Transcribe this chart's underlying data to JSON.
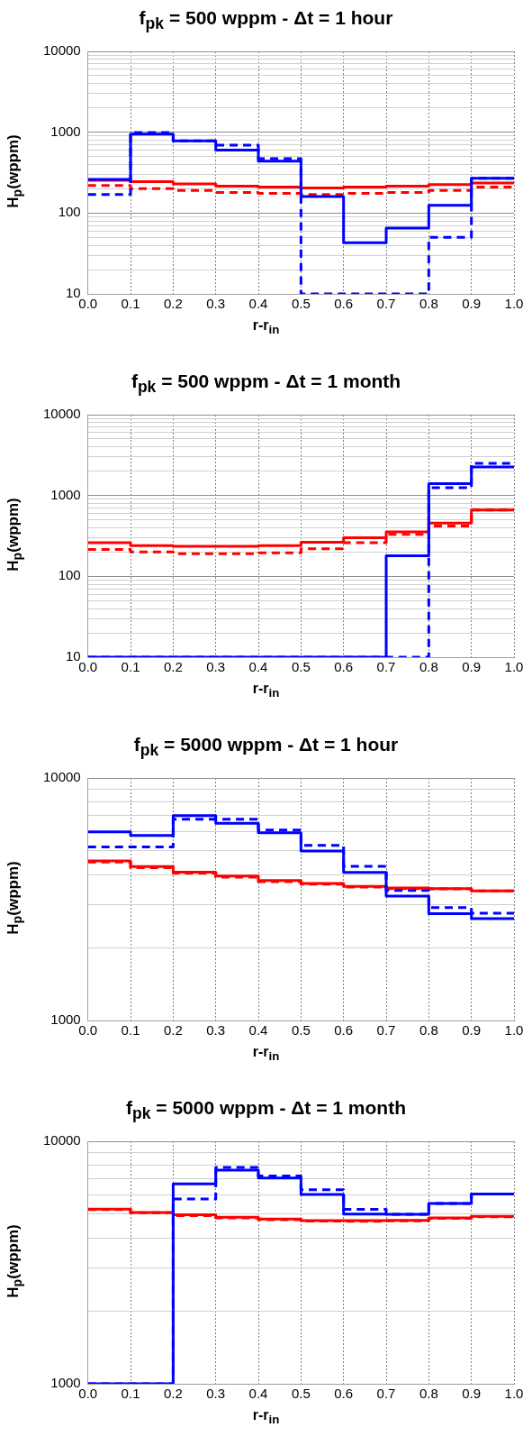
{
  "chart_data": [
    {
      "type": "step",
      "title": "f$_{pk}$ = 500 wppm - Δt = 1 hour",
      "xlabel": "r-r$_{in}$",
      "ylabel": "H$_{p}$(wppm)",
      "log": true,
      "grid": true,
      "marker": "none",
      "x": [
        0,
        0.1,
        0.2,
        0.3,
        0.4,
        0.5,
        0.6,
        0.7,
        0.8,
        0.9,
        1.0
      ],
      "xlim": [
        0,
        1
      ],
      "xticks": [
        {
          "value": 0,
          "label": "0.0"
        },
        {
          "value": 0.1,
          "label": "0.1"
        },
        {
          "value": 0.2,
          "label": "0.2"
        },
        {
          "value": 0.3,
          "label": "0.3"
        },
        {
          "value": 0.4,
          "label": "0.4"
        },
        {
          "value": 0.5,
          "label": "0.5"
        },
        {
          "value": 0.6,
          "label": "0.6"
        },
        {
          "value": 0.7,
          "label": "0.7"
        },
        {
          "value": 0.8,
          "label": "0.8"
        },
        {
          "value": 0.9,
          "label": "0.9"
        },
        {
          "value": 1,
          "label": "1.0"
        }
      ],
      "ylim": [
        10,
        10000
      ],
      "yticks": [
        10,
        {
          "value": 20,
          "label": null
        },
        {
          "value": 30,
          "label": null
        },
        {
          "value": 40,
          "label": null
        },
        {
          "value": 50,
          "label": null
        },
        {
          "value": 60,
          "label": null
        },
        {
          "value": 70,
          "label": null
        },
        {
          "value": 80,
          "label": null
        },
        {
          "value": 90,
          "label": null
        },
        100,
        {
          "value": 200,
          "label": null
        },
        {
          "value": 300,
          "label": null
        },
        {
          "value": 400,
          "label": null
        },
        {
          "value": 500,
          "label": null
        },
        {
          "value": 600,
          "label": null
        },
        {
          "value": 700,
          "label": null
        },
        {
          "value": 800,
          "label": null
        },
        {
          "value": 900,
          "label": null
        },
        1000,
        {
          "value": 2000,
          "label": null
        },
        {
          "value": 3000,
          "label": null
        },
        {
          "value": 4000,
          "label": null
        },
        {
          "value": 5000,
          "label": null
        },
        {
          "value": 6000,
          "label": null
        },
        {
          "value": 7000,
          "label": null
        },
        {
          "value": 8000,
          "label": null
        },
        {
          "value": 9000,
          "label": null
        },
        10000
      ],
      "series": [
        {
          "color": "#ff0000",
          "line_style": "solid",
          "values": [
            255,
            245,
            230,
            215,
            210,
            205,
            210,
            215,
            225,
            235,
            235
          ]
        },
        {
          "color": "#ff0000",
          "line_style": "dashed",
          "values": [
            220,
            200,
            190,
            180,
            175,
            170,
            175,
            180,
            190,
            210,
            210
          ]
        },
        {
          "color": "#0000ff",
          "line_style": "dashed",
          "values": [
            170,
            990,
            780,
            690,
            470,
            10,
            10,
            10,
            50,
            270,
            270
          ]
        },
        {
          "color": "#0000ff",
          "line_style": "solid",
          "values": [
            260,
            950,
            780,
            600,
            440,
            160,
            43,
            65,
            125,
            270,
            270
          ]
        }
      ]
    },
    {
      "type": "step",
      "title": "f$_{pk}$ = 500 wppm - Δt = 1 month",
      "xlabel": "r-r$_{in}$",
      "ylabel": "H$_{p}$(wppm)",
      "log": true,
      "grid": true,
      "marker": "none",
      "x": [
        0,
        0.1,
        0.2,
        0.3,
        0.4,
        0.5,
        0.6,
        0.7,
        0.8,
        0.9,
        1.0
      ],
      "xlim": [
        0,
        1
      ],
      "xticks": [
        {
          "value": 0,
          "label": "0.0"
        },
        {
          "value": 0.1,
          "label": "0.1"
        },
        {
          "value": 0.2,
          "label": "0.2"
        },
        {
          "value": 0.3,
          "label": "0.3"
        },
        {
          "value": 0.4,
          "label": "0.4"
        },
        {
          "value": 0.5,
          "label": "0.5"
        },
        {
          "value": 0.6,
          "label": "0.6"
        },
        {
          "value": 0.7,
          "label": "0.7"
        },
        {
          "value": 0.8,
          "label": "0.8"
        },
        {
          "value": 0.9,
          "label": "0.9"
        },
        {
          "value": 1,
          "label": "1.0"
        }
      ],
      "ylim": [
        10,
        10000
      ],
      "yticks": [
        10,
        {
          "value": 20,
          "label": null
        },
        {
          "value": 30,
          "label": null
        },
        {
          "value": 40,
          "label": null
        },
        {
          "value": 50,
          "label": null
        },
        {
          "value": 60,
          "label": null
        },
        {
          "value": 70,
          "label": null
        },
        {
          "value": 80,
          "label": null
        },
        {
          "value": 90,
          "label": null
        },
        100,
        {
          "value": 200,
          "label": null
        },
        {
          "value": 300,
          "label": null
        },
        {
          "value": 400,
          "label": null
        },
        {
          "value": 500,
          "label": null
        },
        {
          "value": 600,
          "label": null
        },
        {
          "value": 700,
          "label": null
        },
        {
          "value": 800,
          "label": null
        },
        {
          "value": 900,
          "label": null
        },
        1000,
        {
          "value": 2000,
          "label": null
        },
        {
          "value": 3000,
          "label": null
        },
        {
          "value": 4000,
          "label": null
        },
        {
          "value": 5000,
          "label": null
        },
        {
          "value": 6000,
          "label": null
        },
        {
          "value": 7000,
          "label": null
        },
        {
          "value": 8000,
          "label": null
        },
        {
          "value": 9000,
          "label": null
        },
        10000
      ],
      "series": [
        {
          "color": "#ff0000",
          "line_style": "solid",
          "values": [
            260,
            240,
            235,
            235,
            240,
            265,
            300,
            355,
            455,
            660,
            660
          ]
        },
        {
          "color": "#ff0000",
          "line_style": "dashed",
          "values": [
            215,
            200,
            190,
            190,
            195,
            220,
            260,
            330,
            420,
            660,
            660
          ]
        },
        {
          "color": "#0000ff",
          "line_style": "dashed",
          "values": [
            10,
            10,
            10,
            10,
            10,
            10,
            10,
            10,
            1250,
            2500,
            2500
          ]
        },
        {
          "color": "#0000ff",
          "line_style": "solid",
          "values": [
            10,
            10,
            10,
            10,
            10,
            10,
            10,
            180,
            1400,
            2250,
            2250
          ]
        }
      ]
    },
    {
      "type": "step",
      "title": "f$_{pk}$ = 5000 wppm - Δt = 1 hour",
      "xlabel": "r-r$_{in}$",
      "ylabel": "H$_{p}$(wppm)",
      "log": true,
      "grid": true,
      "marker": "none",
      "x": [
        0,
        0.1,
        0.2,
        0.3,
        0.4,
        0.5,
        0.6,
        0.7,
        0.8,
        0.9,
        1.0
      ],
      "xlim": [
        0,
        1
      ],
      "xticks": [
        {
          "value": 0,
          "label": "0.0"
        },
        {
          "value": 0.1,
          "label": "0.1"
        },
        {
          "value": 0.2,
          "label": "0.2"
        },
        {
          "value": 0.3,
          "label": "0.3"
        },
        {
          "value": 0.4,
          "label": "0.4"
        },
        {
          "value": 0.5,
          "label": "0.5"
        },
        {
          "value": 0.6,
          "label": "0.6"
        },
        {
          "value": 0.7,
          "label": "0.7"
        },
        {
          "value": 0.8,
          "label": "0.8"
        },
        {
          "value": 0.9,
          "label": "0.9"
        },
        {
          "value": 1,
          "label": "1.0"
        }
      ],
      "ylim": [
        1000,
        10000
      ],
      "yticks": [
        1000,
        {
          "value": 2000,
          "label": null
        },
        {
          "value": 3000,
          "label": null
        },
        {
          "value": 4000,
          "label": null
        },
        {
          "value": 5000,
          "label": null
        },
        {
          "value": 6000,
          "label": null
        },
        {
          "value": 7000,
          "label": null
        },
        {
          "value": 8000,
          "label": null
        },
        {
          "value": 9000,
          "label": null
        },
        10000
      ],
      "series": [
        {
          "color": "#ff0000",
          "line_style": "solid",
          "values": [
            4550,
            4310,
            4090,
            3940,
            3780,
            3670,
            3570,
            3520,
            3500,
            3420,
            3420
          ]
        },
        {
          "color": "#ff0000",
          "line_style": "dashed",
          "values": [
            4500,
            4270,
            4050,
            3900,
            3740,
            3650,
            3550,
            3500,
            3490,
            3420,
            3420
          ]
        },
        {
          "color": "#0000ff",
          "line_style": "dashed",
          "values": [
            5200,
            5200,
            6760,
            6760,
            6100,
            5270,
            4320,
            3440,
            2920,
            2770,
            2770
          ]
        },
        {
          "color": "#0000ff",
          "line_style": "solid",
          "values": [
            6000,
            5800,
            7000,
            6500,
            5950,
            5000,
            4080,
            3260,
            2760,
            2630,
            2630
          ]
        }
      ]
    },
    {
      "type": "step",
      "title": "f$_{pk}$ = 5000 wppm - Δt = 1 month",
      "xlabel": "r-r$_{in}$",
      "ylabel": "H$_{p}$(wppm)",
      "log": true,
      "grid": true,
      "marker": "none",
      "x": [
        0,
        0.1,
        0.2,
        0.3,
        0.4,
        0.5,
        0.6,
        0.7,
        0.8,
        0.9,
        1.0
      ],
      "xlim": [
        0,
        1
      ],
      "xticks": [
        {
          "value": 0,
          "label": "0.0"
        },
        {
          "value": 0.1,
          "label": "0.1"
        },
        {
          "value": 0.2,
          "label": "0.2"
        },
        {
          "value": 0.3,
          "label": "0.3"
        },
        {
          "value": 0.4,
          "label": "0.4"
        },
        {
          "value": 0.5,
          "label": "0.5"
        },
        {
          "value": 0.6,
          "label": "0.6"
        },
        {
          "value": 0.7,
          "label": "0.7"
        },
        {
          "value": 0.8,
          "label": "0.8"
        },
        {
          "value": 0.9,
          "label": "0.9"
        },
        {
          "value": 1,
          "label": "1.0"
        }
      ],
      "ylim": [
        1000,
        10000
      ],
      "yticks": [
        1000,
        {
          "value": 2000,
          "label": null
        },
        {
          "value": 3000,
          "label": null
        },
        {
          "value": 4000,
          "label": null
        },
        {
          "value": 5000,
          "label": null
        },
        {
          "value": 6000,
          "label": null
        },
        {
          "value": 7000,
          "label": null
        },
        {
          "value": 8000,
          "label": null
        },
        {
          "value": 9000,
          "label": null
        },
        10000
      ],
      "series": [
        {
          "color": "#ff0000",
          "line_style": "solid",
          "values": [
            5250,
            5090,
            4980,
            4860,
            4780,
            4710,
            4710,
            4720,
            4830,
            4900,
            4900
          ]
        },
        {
          "color": "#ff0000",
          "line_style": "dashed",
          "values": [
            5230,
            5070,
            4930,
            4830,
            4750,
            4690,
            4680,
            4700,
            4810,
            4880,
            4880
          ]
        },
        {
          "color": "#0000ff",
          "line_style": "dashed",
          "values": [
            1000,
            1000,
            5780,
            7800,
            7200,
            6310,
            5240,
            5000,
            5540,
            6060,
            6060
          ]
        },
        {
          "color": "#0000ff",
          "line_style": "solid",
          "values": [
            1000,
            1000,
            6680,
            7600,
            7050,
            6040,
            5010,
            5000,
            5540,
            6060,
            6060
          ]
        }
      ]
    }
  ]
}
